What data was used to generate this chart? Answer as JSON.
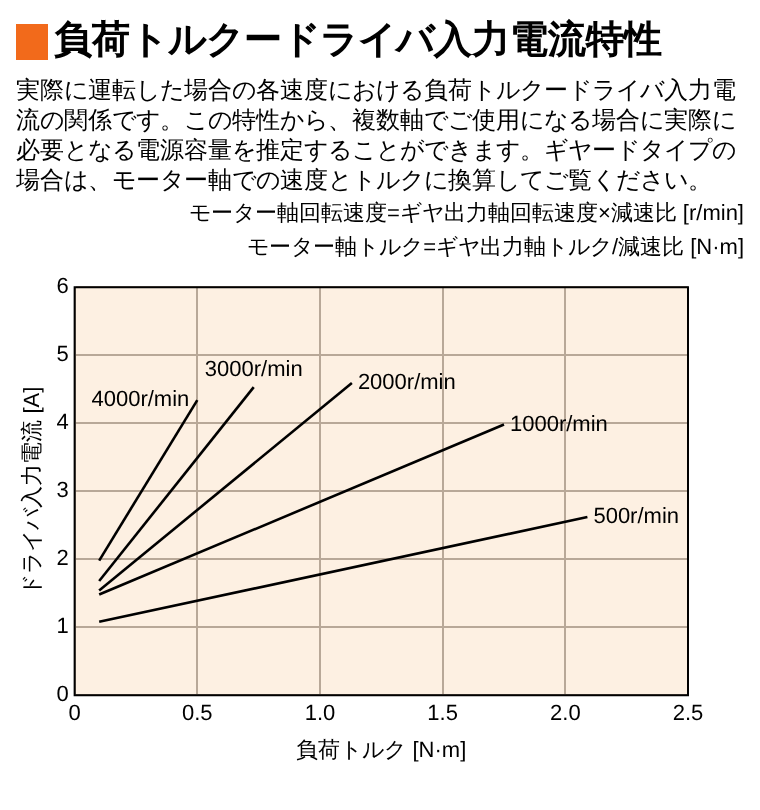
{
  "chart_data": {
    "type": "line",
    "title": "負荷トルクードライバ入力電流特性",
    "subtitle": "実際に運転した場合の各速度における負荷トルクードライバ入力電流の関係です。この特性から、複数軸でご使用になる場合に実際に必要となる電源容量を推定することができます。ギヤードタイプの場合は、モーター軸での速度とトルクに換算してご覧ください。",
    "annotations": [
      "モーター軸回転速度=ギヤ出力軸回転速度×減速比 [r/min]",
      "モーター軸トルク=ギヤ出力軸トルク/減速比 [N·m]"
    ],
    "xlabel": "負荷トルク [N·m]",
    "ylabel": "ドライバ入力電流 [A]",
    "series": [
      {
        "name": "4000r/min",
        "color": "#000000",
        "x": [
          0.1,
          0.5
        ],
        "values": [
          1.98,
          4.34
        ]
      },
      {
        "name": "3000r/min",
        "color": "#000000",
        "x": [
          0.1,
          0.73
        ],
        "values": [
          1.68,
          4.53
        ]
      },
      {
        "name": "2000r/min",
        "color": "#000000",
        "x": [
          0.1,
          1.13
        ],
        "values": [
          1.54,
          4.59
        ]
      },
      {
        "name": "1000r/min",
        "color": "#000000",
        "x": [
          0.1,
          1.75
        ],
        "values": [
          1.48,
          3.98
        ]
      },
      {
        "name": "500r/min",
        "color": "#000000",
        "x": [
          0.1,
          2.09
        ],
        "values": [
          1.08,
          2.62
        ]
      }
    ],
    "xlim": [
      0,
      2.5
    ],
    "xticks": [
      {
        "value": 0,
        "label": "0"
      },
      {
        "value": 0.5,
        "label": "0.5"
      },
      {
        "value": 1,
        "label": "1.0"
      },
      {
        "value": 1.5,
        "label": "1.5"
      },
      {
        "value": 2,
        "label": "2.0"
      },
      {
        "value": 2.5,
        "label": "2.5"
      }
    ],
    "ylim": [
      0,
      6
    ],
    "yticks": [
      0,
      1,
      2,
      3,
      4,
      5,
      6
    ],
    "grid": true,
    "legend": false,
    "marker": "none",
    "line_style": "solid"
  }
}
